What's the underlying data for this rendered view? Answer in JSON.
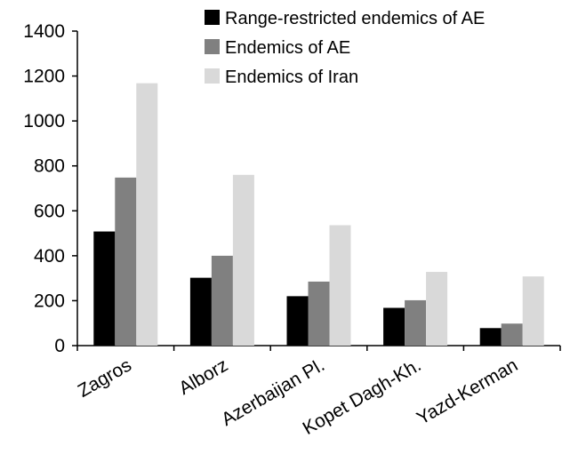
{
  "chart_data": {
    "type": "bar",
    "title": "",
    "xlabel": "",
    "ylabel": "",
    "categories": [
      "Zagros",
      "Alborz",
      "Azerbaijan Pl.",
      "Kopet Dagh-Kh.",
      "Yazd-Kerman"
    ],
    "series": [
      {
        "name": "Range-restricted endemics of AE",
        "color": "#000000",
        "values": [
          508,
          302,
          220,
          168,
          78
        ]
      },
      {
        "name": "Endemics of AE",
        "color": "#808080",
        "values": [
          748,
          400,
          285,
          202,
          98
        ]
      },
      {
        "name": "Endemics of Iran",
        "color": "#d9d9d9",
        "values": [
          1168,
          760,
          536,
          328,
          308
        ]
      }
    ],
    "ylim": [
      0,
      1400
    ],
    "yticks": [
      0,
      200,
      400,
      600,
      800,
      1000,
      1200,
      1400
    ],
    "grid": false,
    "legend_position": "top-right"
  }
}
